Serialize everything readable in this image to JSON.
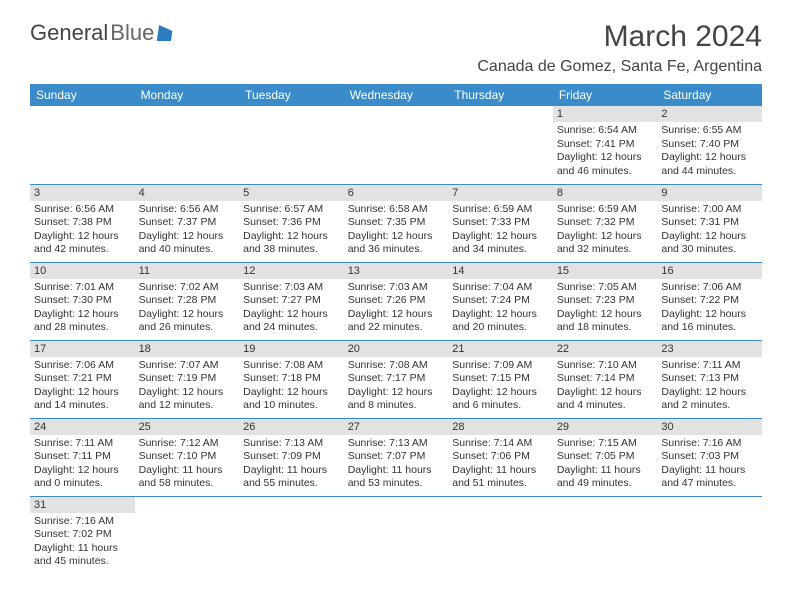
{
  "logo": {
    "text1": "General",
    "text2": "Blue"
  },
  "title": {
    "month": "March 2024",
    "location": "Canada de Gomez, Santa Fe, Argentina"
  },
  "colors": {
    "header_bg": "#3a8bc9",
    "header_fg": "#ffffff",
    "daynum_bg": "#e2e2e2",
    "border": "#3a8bc9",
    "text": "#333333"
  },
  "daynames": [
    "Sunday",
    "Monday",
    "Tuesday",
    "Wednesday",
    "Thursday",
    "Friday",
    "Saturday"
  ],
  "weeks": [
    [
      null,
      null,
      null,
      null,
      null,
      {
        "n": "1",
        "sr": "6:54 AM",
        "ss": "7:41 PM",
        "dl": "12 hours and 46 minutes."
      },
      {
        "n": "2",
        "sr": "6:55 AM",
        "ss": "7:40 PM",
        "dl": "12 hours and 44 minutes."
      }
    ],
    [
      {
        "n": "3",
        "sr": "6:56 AM",
        "ss": "7:38 PM",
        "dl": "12 hours and 42 minutes."
      },
      {
        "n": "4",
        "sr": "6:56 AM",
        "ss": "7:37 PM",
        "dl": "12 hours and 40 minutes."
      },
      {
        "n": "5",
        "sr": "6:57 AM",
        "ss": "7:36 PM",
        "dl": "12 hours and 38 minutes."
      },
      {
        "n": "6",
        "sr": "6:58 AM",
        "ss": "7:35 PM",
        "dl": "12 hours and 36 minutes."
      },
      {
        "n": "7",
        "sr": "6:59 AM",
        "ss": "7:33 PM",
        "dl": "12 hours and 34 minutes."
      },
      {
        "n": "8",
        "sr": "6:59 AM",
        "ss": "7:32 PM",
        "dl": "12 hours and 32 minutes."
      },
      {
        "n": "9",
        "sr": "7:00 AM",
        "ss": "7:31 PM",
        "dl": "12 hours and 30 minutes."
      }
    ],
    [
      {
        "n": "10",
        "sr": "7:01 AM",
        "ss": "7:30 PM",
        "dl": "12 hours and 28 minutes."
      },
      {
        "n": "11",
        "sr": "7:02 AM",
        "ss": "7:28 PM",
        "dl": "12 hours and 26 minutes."
      },
      {
        "n": "12",
        "sr": "7:03 AM",
        "ss": "7:27 PM",
        "dl": "12 hours and 24 minutes."
      },
      {
        "n": "13",
        "sr": "7:03 AM",
        "ss": "7:26 PM",
        "dl": "12 hours and 22 minutes."
      },
      {
        "n": "14",
        "sr": "7:04 AM",
        "ss": "7:24 PM",
        "dl": "12 hours and 20 minutes."
      },
      {
        "n": "15",
        "sr": "7:05 AM",
        "ss": "7:23 PM",
        "dl": "12 hours and 18 minutes."
      },
      {
        "n": "16",
        "sr": "7:06 AM",
        "ss": "7:22 PM",
        "dl": "12 hours and 16 minutes."
      }
    ],
    [
      {
        "n": "17",
        "sr": "7:06 AM",
        "ss": "7:21 PM",
        "dl": "12 hours and 14 minutes."
      },
      {
        "n": "18",
        "sr": "7:07 AM",
        "ss": "7:19 PM",
        "dl": "12 hours and 12 minutes."
      },
      {
        "n": "19",
        "sr": "7:08 AM",
        "ss": "7:18 PM",
        "dl": "12 hours and 10 minutes."
      },
      {
        "n": "20",
        "sr": "7:08 AM",
        "ss": "7:17 PM",
        "dl": "12 hours and 8 minutes."
      },
      {
        "n": "21",
        "sr": "7:09 AM",
        "ss": "7:15 PM",
        "dl": "12 hours and 6 minutes."
      },
      {
        "n": "22",
        "sr": "7:10 AM",
        "ss": "7:14 PM",
        "dl": "12 hours and 4 minutes."
      },
      {
        "n": "23",
        "sr": "7:11 AM",
        "ss": "7:13 PM",
        "dl": "12 hours and 2 minutes."
      }
    ],
    [
      {
        "n": "24",
        "sr": "7:11 AM",
        "ss": "7:11 PM",
        "dl": "12 hours and 0 minutes."
      },
      {
        "n": "25",
        "sr": "7:12 AM",
        "ss": "7:10 PM",
        "dl": "11 hours and 58 minutes."
      },
      {
        "n": "26",
        "sr": "7:13 AM",
        "ss": "7:09 PM",
        "dl": "11 hours and 55 minutes."
      },
      {
        "n": "27",
        "sr": "7:13 AM",
        "ss": "7:07 PM",
        "dl": "11 hours and 53 minutes."
      },
      {
        "n": "28",
        "sr": "7:14 AM",
        "ss": "7:06 PM",
        "dl": "11 hours and 51 minutes."
      },
      {
        "n": "29",
        "sr": "7:15 AM",
        "ss": "7:05 PM",
        "dl": "11 hours and 49 minutes."
      },
      {
        "n": "30",
        "sr": "7:16 AM",
        "ss": "7:03 PM",
        "dl": "11 hours and 47 minutes."
      }
    ],
    [
      {
        "n": "31",
        "sr": "7:16 AM",
        "ss": "7:02 PM",
        "dl": "11 hours and 45 minutes."
      },
      null,
      null,
      null,
      null,
      null,
      null
    ]
  ],
  "labels": {
    "sunrise": "Sunrise:",
    "sunset": "Sunset:",
    "daylight": "Daylight:"
  }
}
